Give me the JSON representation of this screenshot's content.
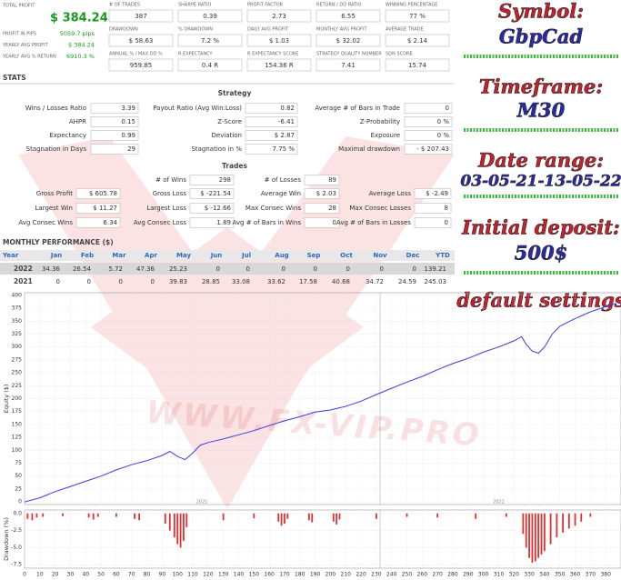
{
  "summary": {
    "total_profit": {
      "label": "TOTAL PROFIT",
      "value": "$ 384.24"
    },
    "left": [
      {
        "label": "PROFIT IN PIPS",
        "value": "5059.7 pips"
      },
      {
        "label": "YEARLY AVG PROFIT",
        "value": "$ 384.24"
      },
      {
        "label": "YEARLY AVG % RETURN",
        "value": "6910.3 %"
      }
    ],
    "grid": [
      [
        {
          "label": "# OF TRADES",
          "value": "387"
        },
        {
          "label": "SHARPE RATIO",
          "value": "0.39"
        },
        {
          "label": "PROFIT FACTOR",
          "value": "2.73"
        },
        {
          "label": "RETURN / DD RATIO",
          "value": "6.55"
        },
        {
          "label": "WINNING PERCENTAGE",
          "value": "77 %"
        }
      ],
      [
        {
          "label": "DRAWDOWN",
          "value": "$ 58.63"
        },
        {
          "label": "% DRAWDOWN",
          "value": "7.2 %"
        },
        {
          "label": "DAILY AVG PROFIT",
          "value": "$ 1.03"
        },
        {
          "label": "MONTHLY AVG PROFIT",
          "value": "$ 32.02"
        },
        {
          "label": "AVERAGE TRADE",
          "value": "$ 2.14"
        }
      ],
      [
        {
          "label": "ANNUAL % / MAX DD %",
          "value": "959.85"
        },
        {
          "label": "R EXPECTANCY",
          "value": "0.4 R"
        },
        {
          "label": "R EXPECTANCY SCORE",
          "value": "154.36 R"
        },
        {
          "label": "STRATEGY QUALITY NUMBER",
          "value": "7.41"
        },
        {
          "label": "SQN SCORE",
          "value": "15.74"
        }
      ]
    ]
  },
  "overlay": [
    {
      "text": "Symbol:",
      "style": "red"
    },
    {
      "text": "GbpCad",
      "style": "blue"
    },
    {
      "text": "Timeframe:",
      "style": "red"
    },
    {
      "text": "M30",
      "style": "blue"
    },
    {
      "text": "Date range:",
      "style": "red"
    },
    {
      "text": "03-05-21-13-05-22",
      "style": "blue"
    },
    {
      "text": "Initial deposit:",
      "style": "red"
    },
    {
      "text": "500$",
      "style": "blue"
    },
    {
      "text": "default settings",
      "style": "red"
    }
  ],
  "stats": {
    "title": "STATS",
    "strategy": {
      "title": "Strategy",
      "rows": [
        [
          [
            "Wins / Losses Ratio",
            "3.39"
          ],
          [
            "Payout Ratio (Avg Win:Loss)",
            "0.82"
          ],
          [
            "Average # of Bars in Trade",
            "0"
          ]
        ],
        [
          [
            "AHPR",
            "0.15"
          ],
          [
            "Z-Score",
            "-6.41"
          ],
          [
            "Z-Probability",
            "0 %"
          ]
        ],
        [
          [
            "Expectancy",
            "0.99"
          ],
          [
            "Deviation",
            "$ 2.87"
          ],
          [
            "Exposure",
            "0 %"
          ]
        ],
        [
          [
            "Stagnation in Days",
            "29"
          ],
          [
            "Stagnation in %",
            "7.75 %"
          ],
          [
            "Maximal drawdown",
            "- $ 207.43"
          ]
        ]
      ]
    },
    "trades": {
      "title": "Trades",
      "top": [
        [
          "# of Wins",
          "298"
        ],
        [
          "# of Losses",
          "89"
        ]
      ],
      "rows": [
        [
          [
            "Gross Profit",
            "$ 605.78"
          ],
          [
            "Gross Loss",
            "$ -221.54"
          ],
          [
            "Average Win",
            "$ 2.03"
          ],
          [
            "Average Loss",
            "$ -2.49"
          ]
        ],
        [
          [
            "Largest Win",
            "$ 11.27"
          ],
          [
            "Largest Loss",
            "$ -12.66"
          ],
          [
            "Max Consec Wins",
            "28"
          ],
          [
            "Max Consec Losses",
            "8"
          ]
        ],
        [
          [
            "Avg Consec Wins",
            "6.34"
          ],
          [
            "Avg Consec Loss",
            "1.89"
          ],
          [
            "Avg # of Bars in Wins",
            "0"
          ],
          [
            "Avg # of Bars in Losses",
            "0"
          ]
        ]
      ]
    }
  },
  "monthly": {
    "title": "MONTHLY PERFORMANCE ($)",
    "header": [
      "Year",
      "Jan",
      "Feb",
      "Mar",
      "Apr",
      "May",
      "Jun",
      "Jul",
      "Aug",
      "Sep",
      "Oct",
      "Nov",
      "Dec",
      "YTD"
    ],
    "rows": [
      [
        "2022",
        34.36,
        26.54,
        5.72,
        47.36,
        25.23,
        0,
        0,
        0,
        0,
        0,
        0,
        0,
        139.21
      ],
      [
        "2021",
        0,
        0,
        0,
        0,
        39.83,
        28.85,
        33.08,
        33.62,
        17.58,
        40.68,
        34.72,
        24.59,
        245.03
      ]
    ]
  },
  "watermark": "WWW.FX-VIP.PRO",
  "chart_data": [
    {
      "type": "line",
      "y_label": "Equity ($)",
      "color": "#3b3be0",
      "ylim": [
        -5,
        405
      ],
      "yticks": [
        0,
        25,
        50,
        75,
        100,
        125,
        150,
        175,
        200,
        225,
        250,
        275,
        300,
        325,
        350,
        375,
        400
      ],
      "grid": true,
      "annotations": [
        {
          "text": "2021",
          "x": 116
        },
        {
          "text": "2022",
          "x": 310
        }
      ],
      "x": [
        0,
        10,
        20,
        30,
        40,
        50,
        60,
        70,
        80,
        90,
        95,
        100,
        105,
        110,
        115,
        120,
        130,
        140,
        150,
        160,
        170,
        180,
        190,
        200,
        210,
        220,
        230,
        240,
        250,
        260,
        270,
        280,
        290,
        300,
        310,
        320,
        325,
        328,
        332,
        336,
        340,
        345,
        350,
        360,
        370,
        380,
        387
      ],
      "values": [
        0,
        8,
        20,
        30,
        40,
        50,
        62,
        72,
        80,
        90,
        98,
        88,
        82,
        95,
        110,
        115,
        122,
        130,
        138,
        148,
        157,
        165,
        174,
        178,
        185,
        195,
        208,
        220,
        232,
        243,
        256,
        268,
        278,
        290,
        300,
        312,
        320,
        305,
        292,
        288,
        300,
        325,
        340,
        355,
        368,
        378,
        384.24
      ]
    },
    {
      "type": "bar",
      "y_label": "Drawdown (%)",
      "color": "#e03030",
      "ylim": [
        -8,
        0.5
      ],
      "xlim": [
        0,
        390
      ],
      "grid": true,
      "yticks": [
        {
          "value": 0,
          "label": "0.0"
        },
        {
          "value": -2.5,
          "label": "-2.5"
        },
        {
          "value": -5,
          "label": "-5.0"
        },
        {
          "value": -7.5,
          "label": "-7.5"
        }
      ],
      "xticks": [
        0,
        10,
        20,
        30,
        40,
        50,
        60,
        70,
        80,
        90,
        100,
        110,
        120,
        130,
        140,
        150,
        160,
        170,
        180,
        190,
        200,
        210,
        220,
        230,
        240,
        250,
        260,
        270,
        280,
        290,
        300,
        310,
        320,
        330,
        340,
        350,
        360,
        370,
        380
      ],
      "x": [
        2,
        5,
        8,
        12,
        25,
        42,
        45,
        48,
        60,
        72,
        75,
        92,
        95,
        98,
        100,
        102,
        104,
        106,
        130,
        150,
        166,
        168,
        170,
        172,
        186,
        188,
        202,
        204,
        206,
        230,
        250,
        270,
        295,
        315,
        326,
        328,
        330,
        332,
        334,
        336,
        338,
        340,
        344,
        348,
        352,
        356,
        360,
        364,
        370
      ],
      "values": [
        -0.8,
        -1.0,
        -0.6,
        -0.5,
        -0.4,
        -0.6,
        -0.9,
        -0.5,
        -0.5,
        -0.8,
        -1.0,
        -1.5,
        -2.5,
        -3.5,
        -4.5,
        -5.0,
        -4.0,
        -2.0,
        -1.0,
        -0.7,
        -1.2,
        -1.8,
        -1.5,
        -0.8,
        -1.0,
        -1.3,
        -1.2,
        -1.6,
        -0.9,
        -0.8,
        -0.5,
        -0.6,
        -0.8,
        -0.5,
        -3.0,
        -5.0,
        -6.5,
        -7.2,
        -7.0,
        -6.5,
        -6.0,
        -5.5,
        -4.5,
        -3.5,
        -2.8,
        -2.2,
        -1.8,
        -1.2,
        -0.5
      ]
    }
  ]
}
